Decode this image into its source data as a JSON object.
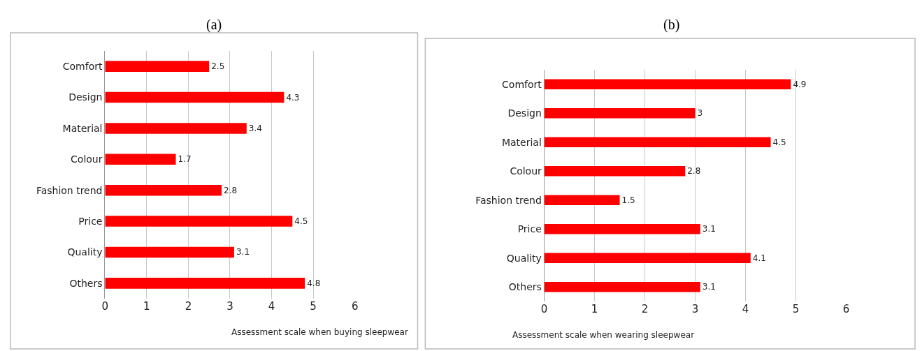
{
  "chart_data": [
    {
      "type": "bar",
      "orientation": "horizontal",
      "title": "(a)",
      "xlabel": "Assessment scale when buying sleepwear",
      "categories": [
        "Comfort",
        "Design",
        "Material",
        "Colour",
        "Fashion trend",
        "Price",
        "Quality",
        "Others"
      ],
      "values": [
        2.5,
        4.3,
        3.4,
        1.7,
        2.8,
        4.5,
        3.1,
        4.8
      ],
      "color": "#ff0000",
      "xlim": [
        0,
        6
      ],
      "xticks": [
        0,
        1,
        2,
        3,
        4,
        5,
        6
      ],
      "grid": "x",
      "data_labels": true
    },
    {
      "type": "bar",
      "orientation": "horizontal",
      "title": "(b)",
      "xlabel": "Assessment scale when wearing sleepwear",
      "categories": [
        "Comfort",
        "Design",
        "Material",
        "Colour",
        "Fashion trend",
        "Price",
        "Quality",
        "Others"
      ],
      "values": [
        4.9,
        3,
        4.5,
        2.8,
        1.5,
        3.1,
        4.1,
        3.1
      ],
      "color": "#ff0000",
      "xlim": [
        0,
        6
      ],
      "xticks": [
        0,
        1,
        2,
        3,
        4,
        5,
        6
      ],
      "grid": "x",
      "data_labels": true
    }
  ]
}
